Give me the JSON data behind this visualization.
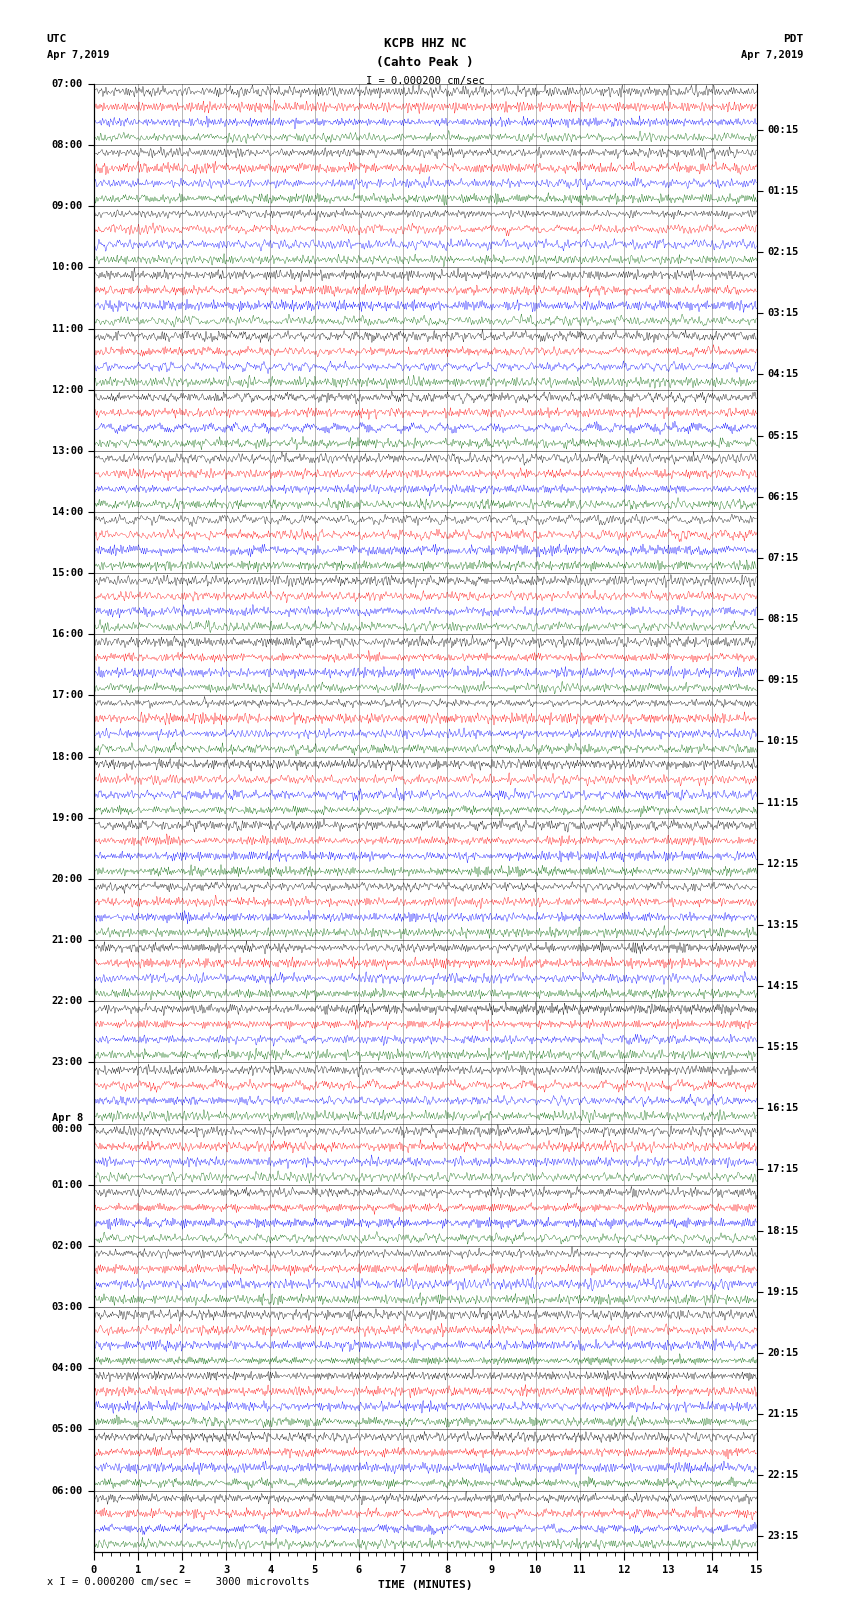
{
  "title_line1": "KCPB HHZ NC",
  "title_line2": "(Cahto Peak )",
  "scale_text": "I = 0.000200 cm/sec",
  "bottom_label": "x I = 0.000200 cm/sec =    3000 microvolts",
  "utc_label": "UTC",
  "utc_date": "Apr 7,2019",
  "pdt_label": "PDT",
  "pdt_date": "Apr 7,2019",
  "xlabel": "TIME (MINUTES)",
  "left_times": [
    "07:00",
    "08:00",
    "09:00",
    "10:00",
    "11:00",
    "12:00",
    "13:00",
    "14:00",
    "15:00",
    "16:00",
    "17:00",
    "18:00",
    "19:00",
    "20:00",
    "21:00",
    "22:00",
    "23:00",
    "Apr 8\n00:00",
    "01:00",
    "02:00",
    "03:00",
    "04:00",
    "05:00",
    "06:00"
  ],
  "right_times": [
    "00:15",
    "01:15",
    "02:15",
    "03:15",
    "04:15",
    "05:15",
    "06:15",
    "07:15",
    "08:15",
    "09:15",
    "10:15",
    "11:15",
    "12:15",
    "13:15",
    "14:15",
    "15:15",
    "16:15",
    "17:15",
    "18:15",
    "19:15",
    "20:15",
    "21:15",
    "22:15",
    "23:15"
  ],
  "n_rows": 96,
  "n_points": 4000,
  "x_max": 15,
  "bg_color": "#ffffff",
  "colors": [
    "#000000",
    "#ff0000",
    "#0000ff",
    "#006400"
  ],
  "amplitude": 0.48,
  "font_family": "monospace",
  "title_fontsize": 9,
  "label_fontsize": 8,
  "tick_fontsize": 7.5
}
